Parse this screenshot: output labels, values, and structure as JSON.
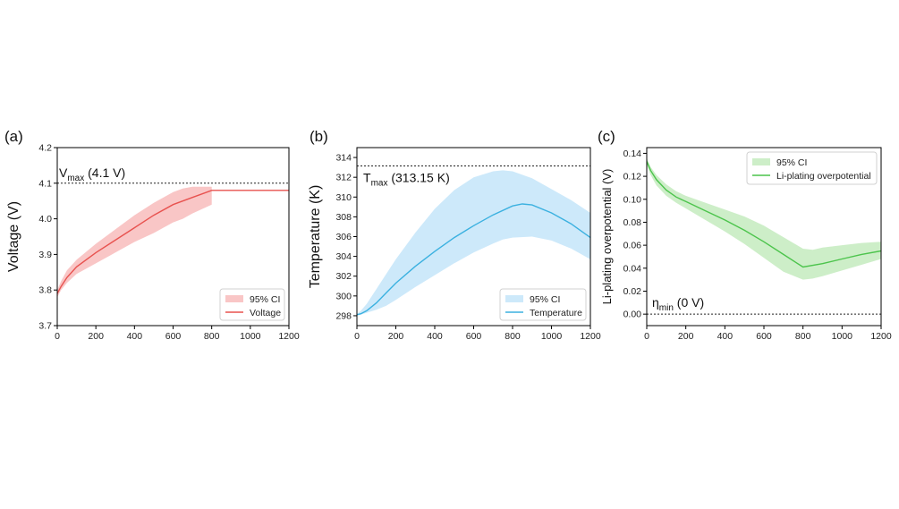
{
  "chart_data": [
    {
      "type": "line",
      "panel_label": "(a)",
      "ylabel": "Voltage (V)",
      "xlabel": "",
      "xlim": [
        0,
        1200
      ],
      "ylim": [
        3.7,
        4.2
      ],
      "xticks": [
        0,
        200,
        400,
        600,
        800,
        1000,
        1200
      ],
      "yticks": [
        3.7,
        3.8,
        3.9,
        4.0,
        4.1,
        4.2
      ],
      "ytick_labels": [
        "3.7",
        "3.8",
        "3.9",
        "4.0",
        "4.1",
        "4.2"
      ],
      "reference_line": {
        "y": 4.1,
        "label_main": "V",
        "label_sub": "max",
        "label_rest": " (4.1 V)"
      },
      "legend": {
        "position": "lower-right",
        "entries": [
          "95% CI",
          "Voltage"
        ]
      },
      "color": "#e8524f",
      "band_color": "#f9c6c6",
      "series": [
        {
          "name": "Voltage",
          "x": [
            0,
            20,
            50,
            100,
            200,
            300,
            400,
            500,
            600,
            700,
            800,
            1200
          ],
          "y": [
            3.79,
            3.81,
            3.835,
            3.865,
            3.905,
            3.94,
            3.975,
            4.01,
            4.04,
            4.06,
            4.08,
            4.08
          ]
        },
        {
          "name": "95% CI",
          "x": [
            0,
            20,
            50,
            100,
            200,
            300,
            400,
            500,
            600,
            650,
            700,
            800
          ],
          "lower": [
            3.78,
            3.8,
            3.82,
            3.845,
            3.875,
            3.905,
            3.935,
            3.96,
            3.99,
            4.0,
            4.015,
            4.04
          ],
          "upper": [
            3.8,
            3.825,
            3.855,
            3.885,
            3.93,
            3.97,
            4.01,
            4.045,
            4.075,
            4.085,
            4.09,
            4.09
          ]
        }
      ]
    },
    {
      "type": "line",
      "panel_label": "(b)",
      "ylabel": "Temperature (K)",
      "xlabel": "",
      "xlim": [
        0,
        1200
      ],
      "ylim": [
        297,
        315
      ],
      "xticks": [
        0,
        200,
        400,
        600,
        800,
        1000,
        1200
      ],
      "yticks": [
        298,
        300,
        302,
        304,
        306,
        308,
        310,
        312,
        314
      ],
      "ytick_labels": [
        "298",
        "300",
        "302",
        "304",
        "306",
        "308",
        "310",
        "312",
        "314"
      ],
      "reference_line": {
        "y": 313.15,
        "label_main": "T",
        "label_sub": "max",
        "label_rest": " (313.15 K)"
      },
      "legend": {
        "position": "lower-right",
        "entries": [
          "95% CI",
          "Temperature"
        ]
      },
      "color": "#3bb1e0",
      "band_color": "#cde9fa",
      "series": [
        {
          "name": "Temperature",
          "x": [
            0,
            20,
            50,
            100,
            150,
            200,
            300,
            400,
            500,
            600,
            700,
            800,
            850,
            900,
            1000,
            1100,
            1200
          ],
          "y": [
            298.1,
            298.2,
            298.5,
            299.3,
            300.3,
            301.3,
            303.0,
            304.5,
            305.9,
            307.1,
            308.2,
            309.1,
            309.3,
            309.2,
            308.4,
            307.3,
            305.9
          ]
        },
        {
          "name": "95% CI",
          "x": [
            0,
            20,
            50,
            100,
            150,
            200,
            300,
            400,
            500,
            600,
            700,
            750,
            800,
            900,
            1000,
            1100,
            1200
          ],
          "lower": [
            298.0,
            298.1,
            298.3,
            298.6,
            299.0,
            299.6,
            300.9,
            302.1,
            303.3,
            304.4,
            305.3,
            305.7,
            305.9,
            306.0,
            305.6,
            304.8,
            303.7
          ],
          "upper": [
            298.2,
            298.5,
            299.2,
            300.7,
            302.2,
            303.7,
            306.4,
            308.8,
            310.7,
            312.0,
            312.6,
            312.7,
            312.6,
            311.9,
            310.8,
            309.7,
            308.4
          ]
        }
      ]
    },
    {
      "type": "line",
      "panel_label": "(c)",
      "ylabel": "Li-plating overpotential (V)",
      "xlabel": "",
      "xlim": [
        0,
        1200
      ],
      "ylim": [
        -0.01,
        0.145
      ],
      "xticks": [
        0,
        200,
        400,
        600,
        800,
        1000,
        1200
      ],
      "yticks": [
        0.0,
        0.02,
        0.04,
        0.06,
        0.08,
        0.1,
        0.12,
        0.14
      ],
      "ytick_labels": [
        "0.00",
        "0.02",
        "0.04",
        "0.06",
        "0.08",
        "0.10",
        "0.12",
        "0.14"
      ],
      "reference_line": {
        "y": 0.0,
        "label_main": "η",
        "label_sub": "min",
        "label_rest": " (0 V)"
      },
      "legend": {
        "position": "top-right",
        "entries": [
          "95% CI",
          "Li-plating overpotential"
        ]
      },
      "color": "#4cc44c",
      "band_color": "#cdeec8",
      "series": [
        {
          "name": "Li-plating overpotential",
          "x": [
            0,
            20,
            50,
            100,
            150,
            200,
            300,
            400,
            500,
            600,
            700,
            800,
            900,
            1000,
            1100,
            1200
          ],
          "y": [
            0.133,
            0.125,
            0.117,
            0.108,
            0.102,
            0.098,
            0.09,
            0.082,
            0.073,
            0.063,
            0.052,
            0.041,
            0.044,
            0.048,
            0.052,
            0.055
          ]
        },
        {
          "name": "95% CI",
          "x": [
            0,
            20,
            50,
            100,
            150,
            200,
            300,
            400,
            500,
            600,
            700,
            800,
            850,
            900,
            1000,
            1100,
            1200
          ],
          "lower": [
            0.13,
            0.121,
            0.112,
            0.103,
            0.097,
            0.092,
            0.082,
            0.072,
            0.061,
            0.049,
            0.037,
            0.03,
            0.031,
            0.033,
            0.038,
            0.043,
            0.048
          ],
          "upper": [
            0.136,
            0.128,
            0.121,
            0.113,
            0.107,
            0.103,
            0.097,
            0.091,
            0.085,
            0.077,
            0.067,
            0.057,
            0.056,
            0.058,
            0.06,
            0.062,
            0.063
          ]
        }
      ]
    }
  ]
}
